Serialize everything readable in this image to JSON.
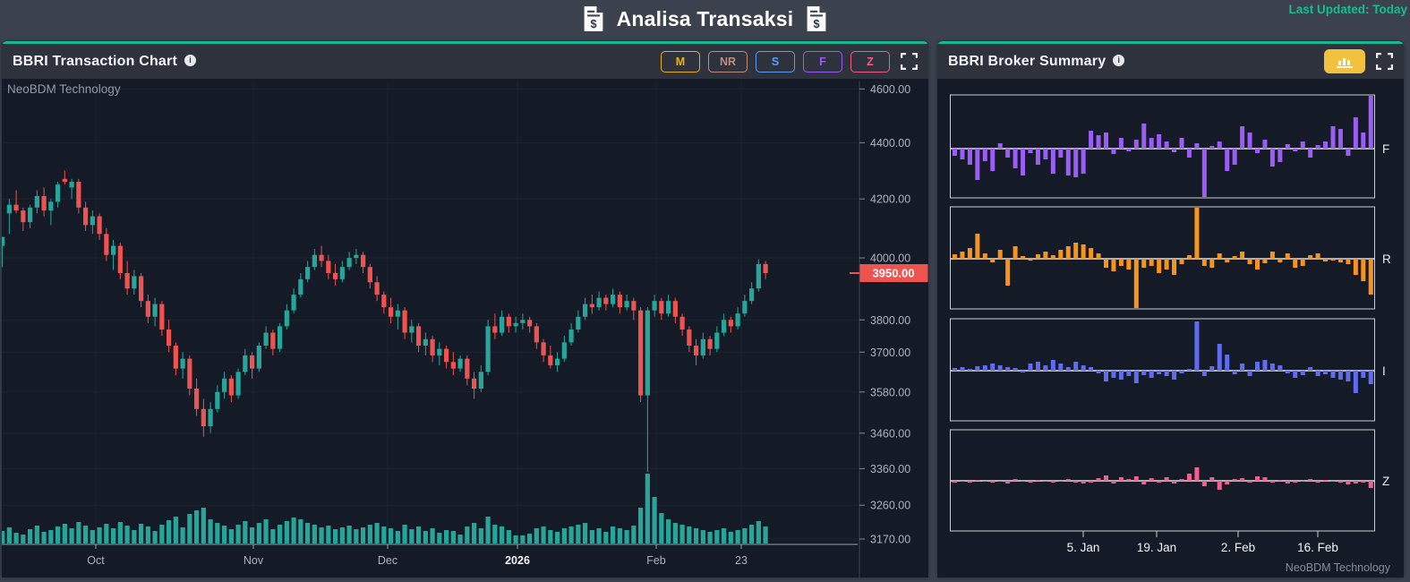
{
  "header": {
    "title": "Analisa Transaksi",
    "last_updated": "Last Updated: Today"
  },
  "left_panel": {
    "title": "BBRI Transaction Chart",
    "watermark": "NeoBDM Technology",
    "buttons": [
      {
        "label": "M",
        "color": "#e9b10e"
      },
      {
        "label": "NR",
        "color": "#bf8e80"
      },
      {
        "label": "S",
        "color": "#5f9df5"
      },
      {
        "label": "F",
        "color": "#9a5cf5"
      },
      {
        "label": "Z",
        "color": "#f25c86"
      }
    ]
  },
  "right_panel": {
    "title": "BBRI Broker Summary",
    "watermark": "NeoBDM Technology"
  },
  "colors": {
    "accent_green": "#17b890",
    "candle_up": "#26a69a",
    "candle_down": "#ef5350",
    "volume": "#26a69a",
    "axis_text": "#aeb2bc",
    "grid": "#1c2331",
    "last_price_bg": "#ef5350"
  },
  "chart_data": [
    {
      "type": "candlestick",
      "symbol": "BBRI",
      "scale": "log",
      "y_ticks": [
        {
          "label": "4600.00",
          "price": 4600
        },
        {
          "label": "4400.00",
          "price": 4400
        },
        {
          "label": "4200.00",
          "price": 4200
        },
        {
          "label": "4000.00",
          "price": 4000
        },
        {
          "label": "3800.00",
          "price": 3800
        },
        {
          "label": "3700.00",
          "price": 3700
        },
        {
          "label": "3580.00",
          "price": 3580
        },
        {
          "label": "3460.00",
          "price": 3460
        },
        {
          "label": "3360.00",
          "price": 3360
        },
        {
          "label": "3260.00",
          "price": 3260
        },
        {
          "label": "3170.00",
          "price": 3170
        }
      ],
      "last_price": {
        "label": "3950.00",
        "price": 3950
      },
      "x_ticks": [
        {
          "label": "Oct",
          "x": 105,
          "bold": false
        },
        {
          "label": "Nov",
          "x": 281,
          "bold": false
        },
        {
          "label": "Dec",
          "x": 431,
          "bold": false
        },
        {
          "label": "2026",
          "x": 576,
          "bold": true
        },
        {
          "label": "Feb",
          "x": 731,
          "bold": false
        },
        {
          "label": "23",
          "x": 826,
          "bold": false
        }
      ],
      "candles": [
        [
          4040,
          4070,
          3970,
          4070,
          14
        ],
        [
          4150,
          4200,
          4080,
          4180,
          18
        ],
        [
          4180,
          4230,
          4150,
          4160,
          12
        ],
        [
          4160,
          4170,
          4090,
          4120,
          10
        ],
        [
          4120,
          4180,
          4100,
          4170,
          16
        ],
        [
          4170,
          4230,
          4150,
          4210,
          20
        ],
        [
          4210,
          4240,
          4140,
          4160,
          13
        ],
        [
          4160,
          4200,
          4110,
          4190,
          15
        ],
        [
          4190,
          4260,
          4170,
          4250,
          19
        ],
        [
          4270,
          4300,
          4250,
          4260,
          22
        ],
        [
          4240,
          4270,
          4200,
          4260,
          17
        ],
        [
          4260,
          4270,
          4150,
          4170,
          24
        ],
        [
          4170,
          4190,
          4090,
          4110,
          20
        ],
        [
          4110,
          4160,
          4080,
          4140,
          15
        ],
        [
          4140,
          4150,
          4060,
          4080,
          18
        ],
        [
          4080,
          4100,
          3990,
          4010,
          22
        ],
        [
          4010,
          4060,
          3960,
          4040,
          17
        ],
        [
          4040,
          4050,
          3930,
          3950,
          24
        ],
        [
          3950,
          3990,
          3880,
          3900,
          20
        ],
        [
          3900,
          3960,
          3880,
          3940,
          15
        ],
        [
          3940,
          3950,
          3840,
          3860,
          22
        ],
        [
          3860,
          3880,
          3790,
          3810,
          19
        ],
        [
          3810,
          3870,
          3780,
          3850,
          14
        ],
        [
          3850,
          3860,
          3750,
          3770,
          21
        ],
        [
          3770,
          3800,
          3700,
          3720,
          26
        ],
        [
          3720,
          3730,
          3630,
          3650,
          30
        ],
        [
          3650,
          3700,
          3620,
          3680,
          18
        ],
        [
          3680,
          3690,
          3570,
          3590,
          33
        ],
        [
          3590,
          3620,
          3510,
          3530,
          37
        ],
        [
          3530,
          3560,
          3450,
          3480,
          40
        ],
        [
          3480,
          3550,
          3460,
          3530,
          27
        ],
        [
          3530,
          3600,
          3520,
          3580,
          23
        ],
        [
          3580,
          3640,
          3560,
          3620,
          20
        ],
        [
          3620,
          3630,
          3550,
          3570,
          16
        ],
        [
          3570,
          3650,
          3560,
          3640,
          21
        ],
        [
          3640,
          3710,
          3630,
          3690,
          25
        ],
        [
          3690,
          3700,
          3620,
          3650,
          18
        ],
        [
          3650,
          3730,
          3640,
          3720,
          23
        ],
        [
          3720,
          3780,
          3710,
          3760,
          27
        ],
        [
          3760,
          3770,
          3690,
          3710,
          16
        ],
        [
          3710,
          3790,
          3700,
          3780,
          21
        ],
        [
          3780,
          3850,
          3770,
          3830,
          25
        ],
        [
          3830,
          3900,
          3820,
          3880,
          29
        ],
        [
          3880,
          3950,
          3870,
          3930,
          27
        ],
        [
          3930,
          3990,
          3920,
          3970,
          23
        ],
        [
          3970,
          4030,
          3960,
          4010,
          21
        ],
        [
          4010,
          4040,
          3970,
          3990,
          18
        ],
        [
          3990,
          4010,
          3930,
          3950,
          20
        ],
        [
          3950,
          3980,
          3910,
          3930,
          16
        ],
        [
          3930,
          3990,
          3920,
          3970,
          18
        ],
        [
          3970,
          4020,
          3960,
          4000,
          20
        ],
        [
          4000,
          4030,
          3980,
          4010,
          16
        ],
        [
          4010,
          4020,
          3950,
          3970,
          18
        ],
        [
          3970,
          3980,
          3900,
          3920,
          21
        ],
        [
          3920,
          3940,
          3860,
          3880,
          23
        ],
        [
          3880,
          3890,
          3820,
          3840,
          19
        ],
        [
          3840,
          3870,
          3790,
          3810,
          17
        ],
        [
          3810,
          3850,
          3770,
          3830,
          14
        ],
        [
          3830,
          3840,
          3740,
          3760,
          21
        ],
        [
          3760,
          3800,
          3730,
          3780,
          16
        ],
        [
          3780,
          3790,
          3700,
          3720,
          19
        ],
        [
          3720,
          3760,
          3690,
          3740,
          14
        ],
        [
          3740,
          3750,
          3670,
          3690,
          17
        ],
        [
          3690,
          3730,
          3660,
          3710,
          12
        ],
        [
          3710,
          3720,
          3650,
          3670,
          15
        ],
        [
          3670,
          3700,
          3630,
          3650,
          14
        ],
        [
          3650,
          3690,
          3640,
          3680,
          10
        ],
        [
          3680,
          3690,
          3600,
          3620,
          19
        ],
        [
          3620,
          3640,
          3560,
          3590,
          23
        ],
        [
          3590,
          3660,
          3580,
          3640,
          17
        ],
        [
          3640,
          3800,
          3630,
          3780,
          30
        ],
        [
          3780,
          3820,
          3740,
          3760,
          21
        ],
        [
          3760,
          3830,
          3750,
          3810,
          19
        ],
        [
          3810,
          3820,
          3760,
          3780,
          15
        ],
        [
          3780,
          3810,
          3760,
          3790,
          9
        ],
        [
          3790,
          3820,
          3770,
          3800,
          9
        ],
        [
          3800,
          3810,
          3760,
          3780,
          11
        ],
        [
          3780,
          3790,
          3710,
          3730,
          17
        ],
        [
          3730,
          3740,
          3670,
          3690,
          19
        ],
        [
          3690,
          3720,
          3650,
          3660,
          15
        ],
        [
          3660,
          3700,
          3640,
          3680,
          13
        ],
        [
          3680,
          3750,
          3670,
          3730,
          17
        ],
        [
          3730,
          3790,
          3720,
          3770,
          19
        ],
        [
          3770,
          3830,
          3760,
          3810,
          21
        ],
        [
          3810,
          3870,
          3800,
          3850,
          23
        ],
        [
          3850,
          3880,
          3820,
          3840,
          15
        ],
        [
          3840,
          3890,
          3830,
          3870,
          17
        ],
        [
          3870,
          3880,
          3830,
          3850,
          13
        ],
        [
          3850,
          3900,
          3840,
          3880,
          19
        ],
        [
          3880,
          3890,
          3820,
          3840,
          17
        ],
        [
          3840,
          3880,
          3830,
          3860,
          15
        ],
        [
          3860,
          3870,
          3800,
          3830,
          20
        ],
        [
          3830,
          3840,
          3550,
          3570,
          40
        ],
        [
          3570,
          3840,
          3350,
          3830,
          78
        ],
        [
          3830,
          3880,
          3810,
          3860,
          52
        ],
        [
          3860,
          3870,
          3800,
          3820,
          34
        ],
        [
          3820,
          3880,
          3810,
          3860,
          27
        ],
        [
          3860,
          3870,
          3790,
          3810,
          23
        ],
        [
          3810,
          3820,
          3750,
          3770,
          21
        ],
        [
          3770,
          3780,
          3700,
          3720,
          19
        ],
        [
          3720,
          3740,
          3660,
          3690,
          17
        ],
        [
          3690,
          3760,
          3680,
          3740,
          15
        ],
        [
          3740,
          3750,
          3690,
          3710,
          13
        ],
        [
          3710,
          3780,
          3700,
          3760,
          15
        ],
        [
          3760,
          3820,
          3750,
          3800,
          17
        ],
        [
          3800,
          3810,
          3760,
          3780,
          13
        ],
        [
          3780,
          3840,
          3770,
          3820,
          15
        ],
        [
          3820,
          3880,
          3810,
          3860,
          17
        ],
        [
          3860,
          3920,
          3850,
          3900,
          21
        ],
        [
          3900,
          3995,
          3890,
          3980,
          25
        ],
        [
          3980,
          3990,
          3930,
          3950,
          19
        ]
      ]
    },
    {
      "type": "bar",
      "title": "BBRI Broker Summary",
      "x_ticks": [
        {
          "label": "5. Jan",
          "x": 163
        },
        {
          "label": "19. Jan",
          "x": 245
        },
        {
          "label": "2. Feb",
          "x": 336
        },
        {
          "label": "16. Feb",
          "x": 425
        }
      ],
      "series": [
        {
          "name": "F",
          "color": "#9b5df6",
          "values": [
            -8,
            -12,
            -18,
            -35,
            -14,
            -25,
            6,
            -10,
            -22,
            -30,
            -5,
            -18,
            -12,
            -28,
            -10,
            -30,
            -32,
            -28,
            20,
            15,
            18,
            -6,
            12,
            -3,
            10,
            28,
            12,
            16,
            8,
            -4,
            12,
            -10,
            6,
            -75,
            3,
            8,
            -25,
            -18,
            25,
            18,
            -5,
            10,
            -20,
            -15,
            5,
            -3,
            8,
            -10,
            4,
            8,
            25,
            22,
            -8,
            35,
            18,
            60
          ]
        },
        {
          "name": "R",
          "color": "#f7941e",
          "values": [
            5,
            8,
            12,
            28,
            6,
            -4,
            10,
            -30,
            14,
            3,
            -2,
            5,
            8,
            4,
            10,
            14,
            18,
            16,
            12,
            6,
            -10,
            -14,
            -8,
            -12,
            -55,
            -10,
            -8,
            -16,
            -12,
            -18,
            -6,
            4,
            60,
            -8,
            -10,
            6,
            -4,
            3,
            8,
            -6,
            -12,
            -5,
            8,
            -4,
            6,
            -10,
            -8,
            4,
            6,
            -3,
            -2,
            -4,
            -6,
            -18,
            -25,
            -40
          ]
        },
        {
          "name": "I",
          "color": "#5f6cf0",
          "values": [
            3,
            4,
            2,
            5,
            6,
            8,
            6,
            4,
            3,
            -2,
            8,
            10,
            6,
            12,
            8,
            4,
            10,
            6,
            4,
            -3,
            -12,
            -8,
            -10,
            -6,
            -14,
            -5,
            -8,
            -4,
            -6,
            -10,
            -3,
            2,
            55,
            -6,
            5,
            30,
            18,
            -4,
            8,
            -6,
            10,
            12,
            8,
            6,
            -3,
            -8,
            -5,
            4,
            -6,
            -4,
            -8,
            -10,
            -12,
            -25,
            -8,
            -15
          ]
        },
        {
          "name": "Z",
          "color": "#f2608e",
          "values": [
            -2,
            -1,
            -2,
            1,
            -1,
            -2,
            -1,
            -3,
            2,
            -1,
            -2,
            1,
            -1,
            -2,
            -1,
            2,
            -2,
            -3,
            -2,
            3,
            6,
            -3,
            4,
            2,
            5,
            -4,
            3,
            -2,
            4,
            -3,
            2,
            8,
            15,
            -6,
            4,
            -10,
            -4,
            2,
            3,
            -2,
            5,
            4,
            -2,
            1,
            -3,
            -2,
            -1,
            2,
            -2,
            1,
            -1,
            -2,
            -4,
            -3,
            -2,
            -8
          ]
        }
      ]
    }
  ]
}
